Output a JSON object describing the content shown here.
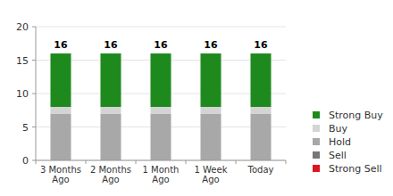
{
  "chart_data": {
    "type": "bar",
    "stacked": true,
    "grid": true,
    "legend": "right",
    "categories": [
      "3 Months Ago",
      "2 Months Ago",
      "1 Month Ago",
      "1 Week Ago",
      "Today"
    ],
    "series": [
      {
        "name": "Strong Buy",
        "color": "#1e8a1e",
        "values": [
          8,
          8,
          8,
          8,
          8
        ]
      },
      {
        "name": "Buy",
        "color": "#d4d4d4",
        "values": [
          1,
          1,
          1,
          1,
          1
        ]
      },
      {
        "name": "Hold",
        "color": "#a8a8a8",
        "values": [
          7,
          7,
          7,
          7,
          7
        ]
      },
      {
        "name": "Sell",
        "color": "#777777",
        "values": [
          0,
          0,
          0,
          0,
          0
        ]
      },
      {
        "name": "Strong Sell",
        "color": "#e0141e",
        "values": [
          0,
          0,
          0,
          0,
          0
        ]
      }
    ],
    "totals": [
      16,
      16,
      16,
      16,
      16
    ],
    "ylim": [
      0,
      20
    ],
    "yticks": [
      0,
      5,
      10,
      15,
      20
    ]
  }
}
